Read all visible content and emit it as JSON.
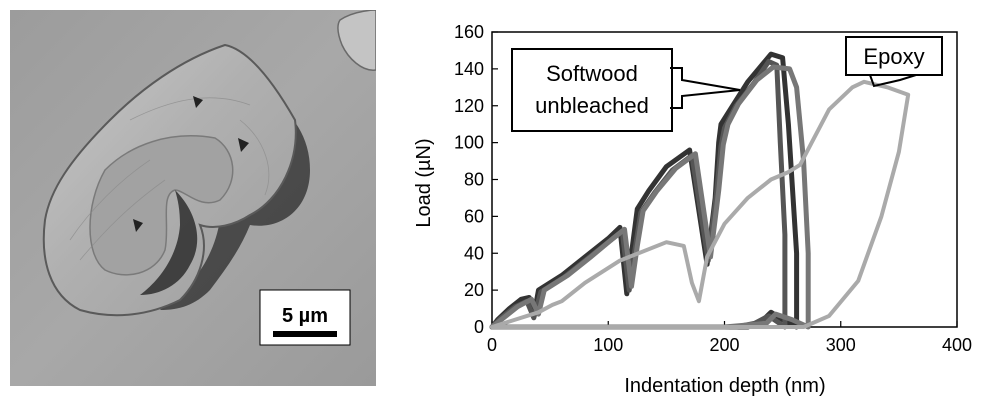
{
  "scale_bar": {
    "label": "5 µm"
  },
  "chart_data": {
    "type": "line",
    "xlabel": "Indentation depth (nm)",
    "ylabel": "Load (µN)",
    "xlim": [
      0,
      400
    ],
    "ylim": [
      0,
      160
    ],
    "xticks": [
      0,
      100,
      200,
      300,
      400
    ],
    "yticks": [
      0,
      20,
      40,
      60,
      80,
      100,
      120,
      140,
      160
    ],
    "grid": false,
    "annotations": [
      {
        "text": "Softwood",
        "position": "upper-left"
      },
      {
        "text": "unbleached",
        "position": "upper-left"
      },
      {
        "text": "Epoxy",
        "position": "top-right"
      }
    ],
    "series": [
      {
        "group": "softwood",
        "color": "#333333",
        "x": [
          0,
          5,
          15,
          25,
          32,
          36,
          40,
          60,
          80,
          100,
          110,
          116,
          120,
          125,
          135,
          150,
          170,
          185,
          192,
          195,
          197,
          205,
          220,
          240,
          250,
          255,
          258,
          262,
          262,
          250,
          240,
          232,
          220,
          150,
          100,
          60,
          20,
          0
        ],
        "y": [
          0,
          4,
          10,
          15,
          16,
          6,
          20,
          28,
          38,
          48,
          54,
          18,
          40,
          64,
          74,
          87,
          96,
          34,
          70,
          100,
          110,
          118,
          133,
          148,
          146,
          110,
          80,
          40,
          0,
          4,
          8,
          3,
          0,
          0,
          0,
          0,
          0,
          0
        ]
      },
      {
        "group": "softwood",
        "color": "#555555",
        "x": [
          0,
          8,
          20,
          30,
          36,
          42,
          62,
          82,
          102,
          112,
          118,
          123,
          128,
          140,
          155,
          172,
          186,
          193,
          197,
          200,
          210,
          225,
          238,
          245,
          248,
          252,
          252,
          238,
          226,
          210,
          150,
          80,
          0
        ],
        "y": [
          0,
          5,
          11,
          14,
          5,
          19,
          27,
          37,
          47,
          52,
          20,
          42,
          62,
          73,
          85,
          93,
          36,
          72,
          98,
          108,
          120,
          132,
          144,
          142,
          100,
          50,
          0,
          6,
          2,
          0,
          0,
          0,
          0
        ]
      },
      {
        "group": "softwood",
        "color": "#777777",
        "x": [
          0,
          10,
          22,
          34,
          40,
          45,
          65,
          85,
          104,
          114,
          120,
          125,
          130,
          142,
          158,
          175,
          188,
          195,
          199,
          203,
          212,
          228,
          242,
          256,
          262,
          268,
          272,
          272,
          258,
          244,
          236,
          200,
          120,
          0
        ],
        "y": [
          0,
          5,
          11,
          15,
          7,
          20,
          28,
          38,
          48,
          53,
          22,
          44,
          63,
          74,
          86,
          94,
          38,
          74,
          99,
          110,
          121,
          134,
          141,
          140,
          130,
          90,
          40,
          0,
          4,
          7,
          2,
          0,
          0,
          0
        ]
      },
      {
        "group": "epoxy",
        "color": "#aaaaaa",
        "x": [
          0,
          20,
          40,
          52,
          60,
          80,
          110,
          150,
          165,
          172,
          178,
          185,
          200,
          220,
          240,
          255,
          265,
          275,
          290,
          310,
          320,
          340,
          358,
          350,
          335,
          315,
          290,
          268,
          0
        ],
        "y": [
          0,
          4,
          8,
          12,
          14,
          24,
          36,
          46,
          44,
          24,
          14,
          38,
          56,
          70,
          80,
          84,
          88,
          100,
          118,
          130,
          133,
          130,
          126,
          95,
          60,
          25,
          6,
          0,
          0
        ]
      }
    ]
  }
}
